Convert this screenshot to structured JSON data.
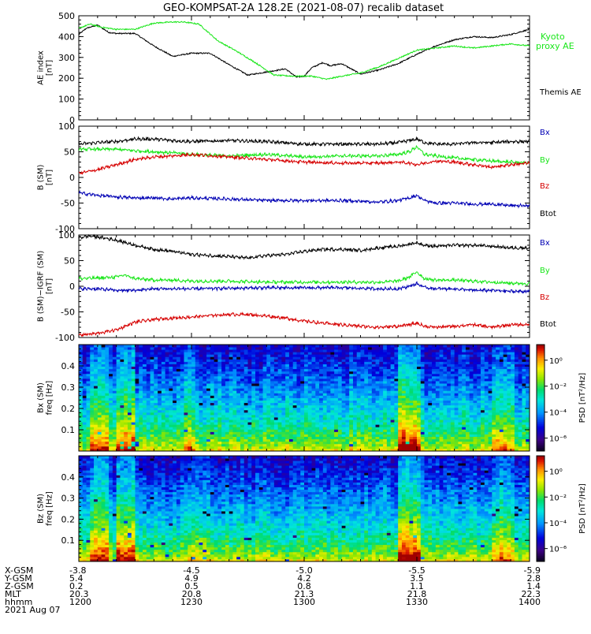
{
  "title": "GEO-KOMPSAT-2A 128.2E (2021-08-07) recalib dataset",
  "date_label": "2021 Aug 07",
  "colors": {
    "black": "#000000",
    "green": "#19e619",
    "red": "#d60000",
    "blue": "#0000b4"
  },
  "axis_table": {
    "row_labels": [
      "X-GSM",
      "Y-GSM",
      "Z-GSM",
      "MLT",
      "hhmm"
    ],
    "columns": [
      [
        "-3.8",
        "5.4",
        "0.2",
        "20.3",
        "1200"
      ],
      [
        "-4.5",
        "4.9",
        "0.5",
        "20.8",
        "1230"
      ],
      [
        "-5.0",
        "4.2",
        "0.8",
        "21.3",
        "1300"
      ],
      [
        "-5.5",
        "3.5",
        "1.1",
        "21.8",
        "1330"
      ],
      [
        "-5.9",
        "2.8",
        "1.4",
        "22.3",
        "1400"
      ]
    ]
  },
  "colorbar": {
    "label": "PSD [nT²/Hz]",
    "ticks": [
      "10⁰",
      "10⁻²",
      "10⁻⁴",
      "10⁻⁶"
    ],
    "tick_values": [
      0,
      -2,
      -4,
      -6
    ],
    "range_log10": [
      -7,
      1.2
    ]
  },
  "chart_data": [
    {
      "type": "line",
      "ylabel": "AE index [nT]",
      "ylim": [
        0,
        500
      ],
      "yticks": [
        0,
        100,
        200,
        300,
        400,
        500
      ],
      "x_range": [
        "12:00",
        "14:00"
      ],
      "legend": [
        "Kyoto proxy AE",
        "Themis AE"
      ],
      "series": [
        {
          "name": "Themis AE",
          "color": "black",
          "x": [
            0,
            2,
            5,
            8,
            10,
            15,
            20,
            25,
            30,
            35,
            40,
            45,
            50,
            55,
            58,
            60,
            62,
            65,
            67,
            70,
            75,
            80,
            85,
            90,
            95,
            100,
            105,
            110,
            115,
            118,
            120
          ],
          "y": [
            410,
            440,
            455,
            420,
            415,
            415,
            355,
            305,
            320,
            320,
            265,
            215,
            230,
            245,
            205,
            210,
            250,
            275,
            260,
            270,
            220,
            240,
            270,
            315,
            355,
            385,
            400,
            395,
            410,
            425,
            435
          ]
        },
        {
          "name": "Kyoto proxy AE",
          "color": "green",
          "x": [
            0,
            3,
            6,
            10,
            15,
            20,
            25,
            28,
            32,
            37,
            42,
            47,
            52,
            57,
            62,
            66,
            70,
            75,
            80,
            85,
            90,
            95,
            100,
            105,
            110,
            115,
            120
          ],
          "y": [
            440,
            460,
            445,
            435,
            435,
            465,
            470,
            470,
            460,
            380,
            330,
            275,
            215,
            210,
            210,
            195,
            210,
            225,
            255,
            295,
            335,
            345,
            355,
            345,
            355,
            365,
            355
          ]
        }
      ]
    },
    {
      "type": "line",
      "ylabel": "B (SM) [nT]",
      "ylim": [
        -100,
        100
      ],
      "yticks": [
        -100,
        -50,
        0,
        50,
        100
      ],
      "x_range": [
        "12:00",
        "14:00"
      ],
      "legend": [
        "Bx",
        "By",
        "Bz",
        "Btot"
      ],
      "series": [
        {
          "name": "Btot",
          "color": "black",
          "x": [
            0,
            5,
            10,
            15,
            20,
            25,
            30,
            40,
            50,
            60,
            70,
            80,
            85,
            88,
            90,
            92,
            95,
            100,
            105,
            110,
            115,
            120
          ],
          "y": [
            65,
            68,
            70,
            75,
            75,
            72,
            70,
            72,
            70,
            65,
            65,
            65,
            68,
            72,
            75,
            68,
            65,
            65,
            68,
            68,
            70,
            70
          ]
        },
        {
          "name": "By",
          "color": "green",
          "x": [
            0,
            5,
            10,
            15,
            20,
            25,
            30,
            40,
            50,
            60,
            70,
            80,
            85,
            88,
            90,
            92,
            95,
            100,
            105,
            110,
            115,
            120
          ],
          "y": [
            55,
            55,
            55,
            52,
            50,
            48,
            45,
            42,
            45,
            40,
            42,
            42,
            45,
            50,
            60,
            45,
            42,
            38,
            35,
            32,
            30,
            28
          ]
        },
        {
          "name": "Bz",
          "color": "red",
          "x": [
            0,
            5,
            10,
            15,
            20,
            25,
            30,
            40,
            50,
            60,
            70,
            80,
            85,
            88,
            90,
            92,
            95,
            100,
            105,
            110,
            115,
            120
          ],
          "y": [
            8,
            15,
            25,
            35,
            40,
            42,
            45,
            40,
            35,
            30,
            28,
            28,
            30,
            28,
            25,
            28,
            32,
            30,
            25,
            20,
            25,
            28
          ]
        },
        {
          "name": "Bx",
          "color": "blue",
          "x": [
            0,
            5,
            10,
            15,
            20,
            25,
            30,
            40,
            50,
            60,
            70,
            80,
            85,
            88,
            90,
            92,
            95,
            100,
            105,
            110,
            115,
            120
          ],
          "y": [
            -30,
            -35,
            -38,
            -40,
            -40,
            -42,
            -40,
            -42,
            -45,
            -45,
            -45,
            -48,
            -45,
            -40,
            -35,
            -45,
            -50,
            -50,
            -52,
            -52,
            -55,
            -55
          ]
        }
      ]
    },
    {
      "type": "line",
      "ylabel": "B (SM)−IGRF (SM) [nT]",
      "ylim": [
        -100,
        100
      ],
      "yticks": [
        -100,
        -50,
        0,
        50,
        100
      ],
      "x_range": [
        "12:00",
        "14:00"
      ],
      "legend": [
        "Bx",
        "By",
        "Bz",
        "Btot"
      ],
      "series": [
        {
          "name": "Btot",
          "color": "black",
          "x": [
            0,
            3,
            6,
            10,
            15,
            20,
            25,
            30,
            35,
            40,
            45,
            50,
            55,
            60,
            65,
            70,
            75,
            80,
            85,
            88,
            90,
            92,
            95,
            100,
            105,
            110,
            115,
            120
          ],
          "y": [
            95,
            98,
            95,
            90,
            80,
            72,
            68,
            62,
            60,
            58,
            55,
            60,
            62,
            68,
            72,
            72,
            70,
            75,
            78,
            82,
            85,
            80,
            78,
            80,
            80,
            78,
            75,
            75
          ]
        },
        {
          "name": "By",
          "color": "green",
          "x": [
            0,
            5,
            10,
            12,
            15,
            20,
            25,
            30,
            40,
            50,
            60,
            70,
            80,
            85,
            88,
            90,
            92,
            95,
            100,
            105,
            110,
            115,
            120
          ],
          "y": [
            15,
            16,
            18,
            22,
            15,
            12,
            12,
            10,
            10,
            8,
            8,
            8,
            8,
            10,
            18,
            28,
            15,
            12,
            12,
            10,
            8,
            6,
            5
          ]
        },
        {
          "name": "Bx",
          "color": "blue",
          "x": [
            0,
            5,
            10,
            15,
            20,
            25,
            30,
            40,
            50,
            60,
            70,
            80,
            85,
            88,
            90,
            92,
            95,
            100,
            105,
            110,
            115,
            120
          ],
          "y": [
            -5,
            -5,
            -8,
            -8,
            -5,
            -5,
            -5,
            -4,
            -3,
            -3,
            -3,
            -5,
            -5,
            0,
            5,
            -2,
            -5,
            -5,
            -8,
            -8,
            -10,
            -10
          ]
        },
        {
          "name": "Bz",
          "color": "red",
          "x": [
            0,
            5,
            10,
            15,
            20,
            25,
            30,
            35,
            40,
            45,
            50,
            55,
            60,
            65,
            70,
            75,
            80,
            85,
            88,
            90,
            92,
            95,
            100,
            105,
            110,
            115,
            120
          ],
          "y": [
            -95,
            -92,
            -85,
            -70,
            -65,
            -62,
            -60,
            -57,
            -55,
            -55,
            -58,
            -62,
            -68,
            -72,
            -75,
            -78,
            -80,
            -78,
            -75,
            -72,
            -78,
            -80,
            -78,
            -75,
            -80,
            -75,
            -75
          ]
        }
      ]
    },
    {
      "type": "heatmap",
      "ylabel": "Bx (SM) freq [Hz]",
      "ylim": [
        0,
        0.5
      ],
      "yticks": [
        0.1,
        0.2,
        0.3,
        0.4
      ],
      "x_range": [
        "12:00",
        "14:00"
      ],
      "z_log10_range": [
        -7,
        1.2
      ],
      "active_bands_log10": [
        {
          "x_from": 3,
          "x_to": 8,
          "boost": 1.5
        },
        {
          "x_from": 10,
          "x_to": 15,
          "boost": 1.6
        },
        {
          "x_from": 28,
          "x_to": 31,
          "boost": 0.8
        },
        {
          "x_from": 85,
          "x_to": 91,
          "boost": 2.0
        },
        {
          "x_from": 110,
          "x_to": 116,
          "boost": 1.0
        }
      ]
    },
    {
      "type": "heatmap",
      "ylabel": "Bz (SM) freq [Hz]",
      "ylim": [
        0,
        0.5
      ],
      "yticks": [
        0.1,
        0.2,
        0.3,
        0.4
      ],
      "x_range": [
        "12:00",
        "14:00"
      ],
      "z_log10_range": [
        -7,
        1.2
      ],
      "active_bands_log10": [
        {
          "x_from": 3,
          "x_to": 8,
          "boost": 1.4
        },
        {
          "x_from": 10,
          "x_to": 15,
          "boost": 1.6
        },
        {
          "x_from": 30,
          "x_to": 34,
          "boost": 0.8
        },
        {
          "x_from": 85,
          "x_to": 91,
          "boost": 2.0
        },
        {
          "x_from": 110,
          "x_to": 116,
          "boost": 1.0
        }
      ]
    }
  ]
}
